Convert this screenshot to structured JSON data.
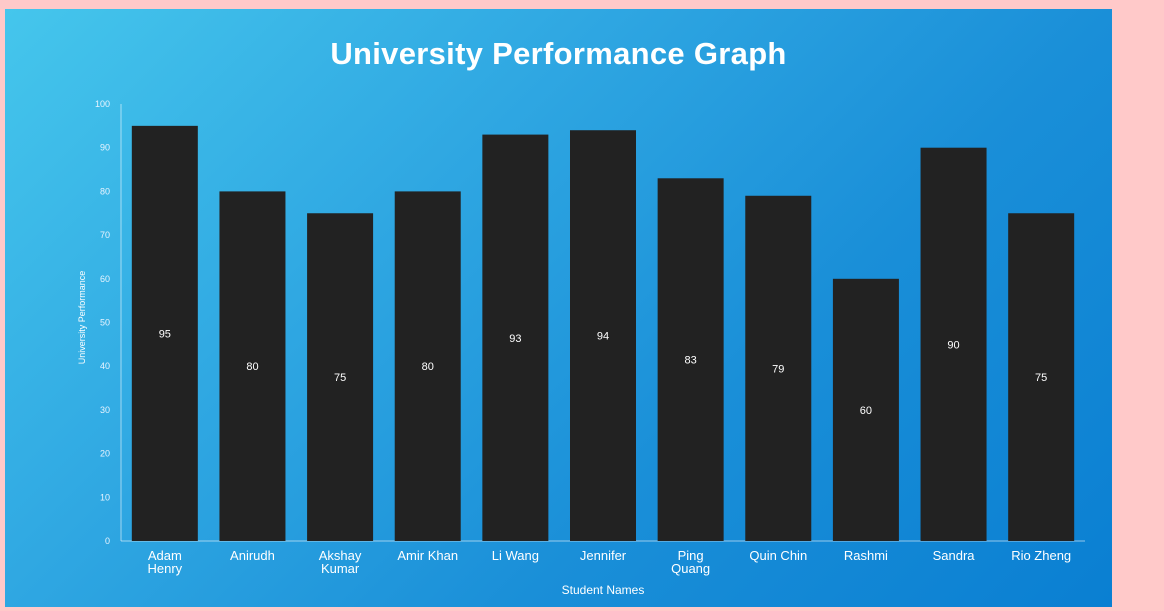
{
  "chart_data": {
    "type": "bar",
    "title": "University Performance Graph",
    "xlabel": "Student Names",
    "ylabel": "University Performance",
    "categories": [
      [
        "Adam",
        "Henry"
      ],
      [
        "Anirudh"
      ],
      [
        "Akshay",
        "Kumar"
      ],
      [
        "Amir Khan"
      ],
      [
        "Li Wang"
      ],
      [
        "Jennifer"
      ],
      [
        "Ping",
        "Quang"
      ],
      [
        "Quin Chin"
      ],
      [
        "Rashmi"
      ],
      [
        "Sandra"
      ],
      [
        "Rio Zheng"
      ]
    ],
    "values": [
      95,
      80,
      75,
      80,
      93,
      94,
      83,
      79,
      60,
      90,
      75
    ],
    "ylim": [
      0,
      100
    ],
    "yticks": [
      0,
      10,
      20,
      30,
      40,
      50,
      60,
      70,
      80,
      90,
      100
    ],
    "grid": false,
    "legend": "none",
    "bar_color": "#222222",
    "background_color": "#1a8fd8",
    "page_background": "#ffc9c9"
  }
}
